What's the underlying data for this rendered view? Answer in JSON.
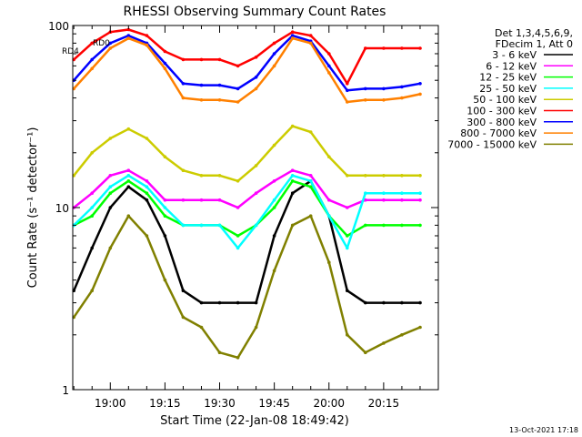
{
  "chart_data": {
    "type": "line",
    "title": "RHESSI Observing Summary Count Rates",
    "xlabel": "Start Time (22-Jan-08 18:49:42)",
    "ylabel": "Count Rate (s⁻¹ detector⁻¹)",
    "y_scale": "log",
    "ylim": [
      1,
      100
    ],
    "xlim": [
      "18:49:42",
      "20:30:00"
    ],
    "y_ticks": [
      "1",
      "10",
      "100"
    ],
    "x_ticks": [
      "19:00",
      "19:15",
      "19:30",
      "19:45",
      "20:00",
      "20:15"
    ],
    "grid": false,
    "legend_position": "right",
    "legend_header": [
      "Det 1,3,4,5,6,9,",
      "FDecim 1, Att 0"
    ],
    "annotations": [
      "RD0",
      "RD4"
    ],
    "footer": "13-Oct-2021 17:18",
    "x": [
      "18:50",
      "18:55",
      "19:00",
      "19:05",
      "19:10",
      "19:15",
      "19:20",
      "19:25",
      "19:30",
      "19:35",
      "19:40",
      "19:45",
      "19:50",
      "19:55",
      "20:00",
      "20:05",
      "20:10",
      "20:15",
      "20:20",
      "20:25"
    ],
    "series": [
      {
        "name": "3 - 6 keV",
        "color": "#000000",
        "values": [
          3.5,
          6,
          10,
          13,
          11,
          7,
          3.5,
          3,
          3,
          3,
          3,
          7,
          12,
          14,
          9,
          3.5,
          3,
          3,
          3,
          3
        ]
      },
      {
        "name": "6 - 12 keV",
        "color": "#ff00ff",
        "values": [
          10,
          12,
          15,
          16,
          14,
          11,
          11,
          11,
          11,
          10,
          12,
          14,
          16,
          15,
          11,
          10,
          11,
          11,
          11,
          11
        ]
      },
      {
        "name": "12 - 25 keV",
        "color": "#00ff00",
        "values": [
          8,
          9,
          12,
          14,
          12,
          9,
          8,
          8,
          8,
          7,
          8,
          10,
          14,
          13,
          9,
          7,
          8,
          8,
          8,
          8
        ]
      },
      {
        "name": "25 - 50 keV",
        "color": "#00ffff",
        "values": [
          8,
          10,
          13,
          15,
          13,
          10,
          8,
          8,
          8,
          6,
          8,
          11,
          15,
          14,
          9,
          6,
          12,
          12,
          12,
          12
        ]
      },
      {
        "name": "50 - 100 keV",
        "color": "#cccc00",
        "values": [
          15,
          20,
          24,
          27,
          24,
          19,
          16,
          15,
          15,
          14,
          17,
          22,
          28,
          26,
          19,
          15,
          15,
          15,
          15,
          15
        ]
      },
      {
        "name": "100 - 300 keV",
        "color": "#ff0000",
        "values": [
          65,
          80,
          92,
          95,
          88,
          72,
          65,
          65,
          65,
          60,
          67,
          80,
          92,
          88,
          70,
          48,
          75,
          75,
          75,
          75
        ]
      },
      {
        "name": "300 - 800 keV",
        "color": "#0000ff",
        "values": [
          50,
          65,
          80,
          88,
          80,
          62,
          48,
          47,
          47,
          45,
          52,
          70,
          88,
          82,
          60,
          44,
          45,
          45,
          46,
          48
        ]
      },
      {
        "name": "800 - 7000 keV",
        "color": "#ff8000",
        "values": [
          45,
          58,
          75,
          85,
          78,
          58,
          40,
          39,
          39,
          38,
          45,
          60,
          85,
          80,
          55,
          38,
          39,
          39,
          40,
          42
        ]
      },
      {
        "name": "7000 - 15000 keV",
        "color": "#808000",
        "values": [
          2.5,
          3.5,
          6,
          9,
          7,
          4,
          2.5,
          2.2,
          1.6,
          1.5,
          2.2,
          4.5,
          8,
          9,
          5,
          2,
          1.6,
          1.8,
          2,
          2.2
        ]
      }
    ]
  }
}
